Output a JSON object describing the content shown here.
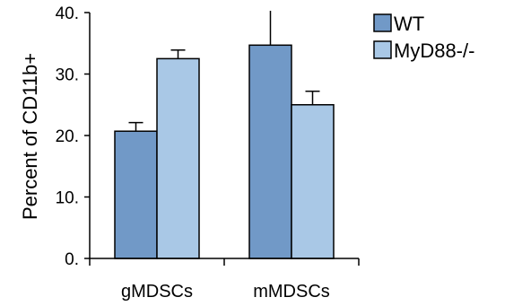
{
  "chart_data": {
    "type": "bar",
    "title": "",
    "xlabel": "",
    "ylabel": "Percent of CD11b+",
    "ylim": [
      0,
      40
    ],
    "yticks": [
      {
        "value": 0,
        "label": "0."
      },
      {
        "value": 10,
        "label": "10."
      },
      {
        "value": 20,
        "label": "20."
      },
      {
        "value": 30,
        "label": "30."
      },
      {
        "value": 40,
        "label": "40."
      }
    ],
    "categories": [
      "gMDSCs",
      "mMDSCs"
    ],
    "series": [
      {
        "name": "WT",
        "color": "#7199c7",
        "values": [
          20.7,
          34.7
        ],
        "errors": [
          1.4,
          6.0
        ]
      },
      {
        "name": "MyD88-/-",
        "color": "#a9c8e6",
        "values": [
          32.5,
          25.0
        ],
        "errors": [
          1.4,
          2.2
        ]
      }
    ],
    "grid": false,
    "legend_position": "top-right"
  }
}
